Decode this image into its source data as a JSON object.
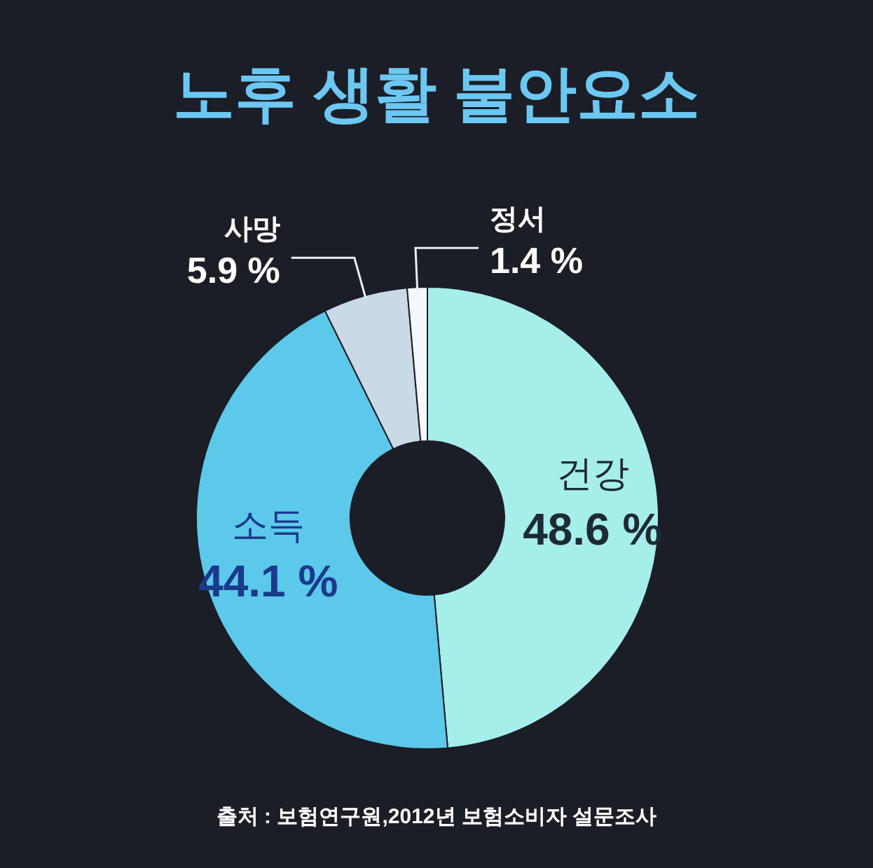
{
  "chart_data": {
    "type": "donut",
    "title": "노후 생활 불안요소",
    "categories": [
      "건강",
      "소득",
      "사망",
      "정서"
    ],
    "values": [
      48.6,
      44.1,
      5.9,
      1.4
    ],
    "colors": [
      "#a6eeea",
      "#5cc8ea",
      "#c9d9e6",
      "#f4f8fa"
    ],
    "value_labels": [
      "48.6 %",
      "44.1 %",
      "5.9 %",
      "1.4 %"
    ],
    "annotations": [
      "출처 : 보험연구원,2012년 보험소비자 설문조사"
    ]
  }
}
